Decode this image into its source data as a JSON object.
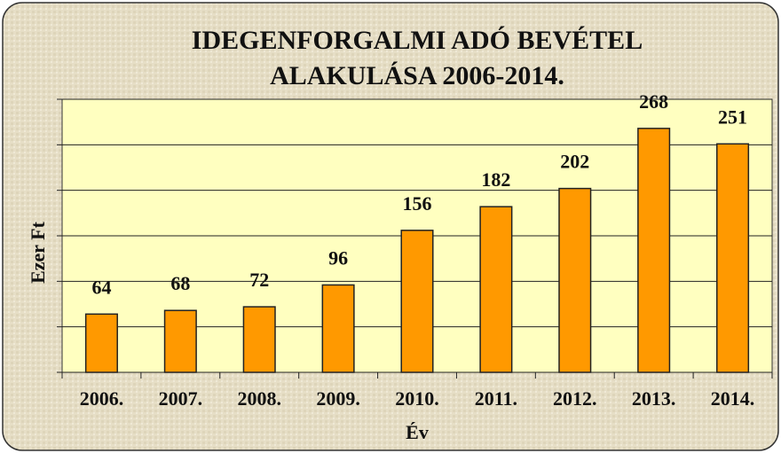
{
  "chart_data": {
    "type": "bar",
    "title": [
      "IDEGENFORGALMI ADÓ BEVÉTEL",
      "ALAKULÁSA 2006-2014."
    ],
    "x_label": "Év",
    "y_label": "Ezer Ft",
    "categories": [
      "2006.",
      "2007.",
      "2008.",
      "2009.",
      "2010.",
      "2011.",
      "2012.",
      "2013.",
      "2014."
    ],
    "values": [
      64,
      68,
      72,
      96,
      156,
      182,
      202,
      268,
      251
    ],
    "color": "#ff9900",
    "ylim": [
      0,
      300
    ],
    "yticks": [
      0,
      50,
      100,
      150,
      200,
      250,
      300
    ],
    "grid": true
  }
}
